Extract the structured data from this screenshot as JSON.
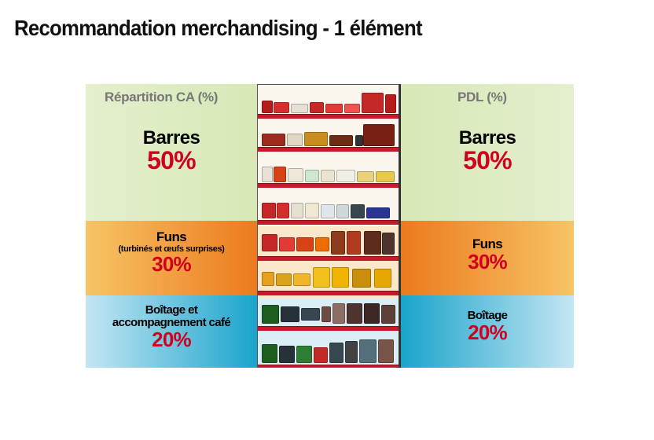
{
  "title": "Recommandation merchandising - 1 élément",
  "left_header": "Répartition CA (%)",
  "right_header": "PDL (%)",
  "colors": {
    "green_band": "#dcebc0",
    "orange_band": "#f08a2e",
    "blue_band": "#1fa6cc",
    "percent_red": "#d1001f",
    "shelf_red": "#c8182a"
  },
  "left": {
    "barres": {
      "label": "Barres",
      "pct": "50%"
    },
    "funs": {
      "label": "Funs",
      "sub": "(turbinés et œufs surprises)",
      "pct": "30%"
    },
    "boitage": {
      "label_line1": "Boîtage et",
      "label_line2": "accompagnement café",
      "pct": "20%"
    }
  },
  "right": {
    "barres": {
      "label": "Barres",
      "pct": "50%"
    },
    "funs": {
      "label": "Funs",
      "pct": "30%"
    },
    "boitage": {
      "label": "Boîtage",
      "pct": "20%"
    }
  },
  "shelf_icon": "chocolate-shelf-planogram-image"
}
